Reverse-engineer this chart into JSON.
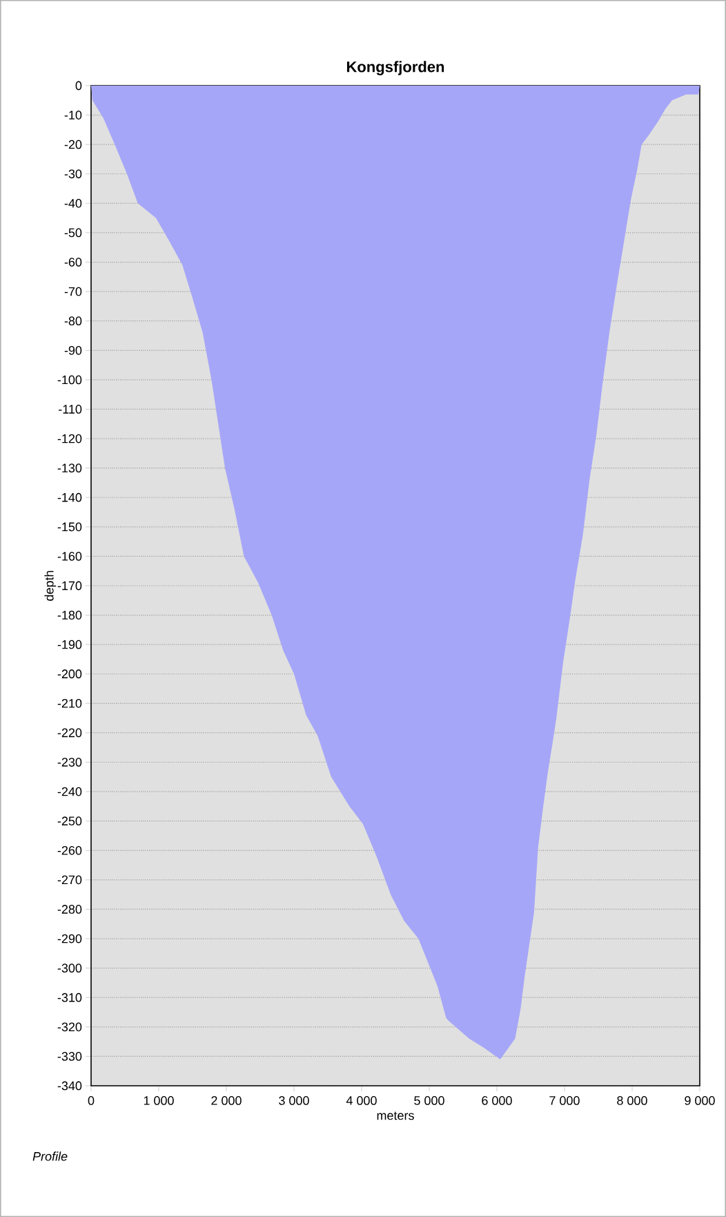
{
  "chart_data": {
    "type": "area",
    "title": "Kongsfjorden",
    "xlabel": "meters",
    "ylabel": "depth",
    "annotations": [
      "Profile"
    ],
    "x": [
      0,
      20,
      180,
      350,
      530,
      690,
      960,
      1160,
      1350,
      1510,
      1650,
      1780,
      1880,
      1980,
      2120,
      2260,
      2470,
      2670,
      2840,
      3000,
      3180,
      3350,
      3550,
      3820,
      4020,
      4220,
      4430,
      4630,
      4840,
      4980,
      5120,
      5250,
      5290,
      5590,
      5800,
      6050,
      6270,
      6350,
      6410,
      6550,
      6610,
      6680,
      6750,
      6820,
      6880,
      6980,
      7080,
      7160,
      7270,
      7370,
      7470,
      7570,
      7670,
      7780,
      7880,
      7980,
      8080,
      8140,
      8240,
      8390,
      8490,
      8590,
      8800,
      8980,
      9000
    ],
    "series": [
      {
        "color": "#a6a6f8",
        "values": [
          0,
          -5,
          -11,
          -20,
          -30,
          -40,
          -45,
          -53,
          -61,
          -73,
          -84,
          -100,
          -115,
          -130,
          -144,
          -160,
          -169,
          -180,
          -192,
          -200,
          -214,
          -221,
          -235,
          -245,
          -251,
          -262,
          -275,
          -284,
          -290,
          -298,
          -306,
          -317,
          -318,
          -324,
          -327,
          -331,
          -324,
          -314,
          -303,
          -281,
          -259,
          -246,
          -234,
          -224,
          -215,
          -196,
          -181,
          -168,
          -153,
          -134,
          -119,
          -100,
          -83,
          -67,
          -53,
          -39,
          -28,
          -20,
          -17,
          -12,
          -8,
          -5,
          -3,
          -3,
          0
        ]
      }
    ],
    "xlim": [
      0,
      9000
    ],
    "xticks": [
      0,
      {
        "value": 1000,
        "label": "1 000"
      },
      {
        "value": 2000,
        "label": "2 000"
      },
      {
        "value": 3000,
        "label": "3 000"
      },
      {
        "value": 4000,
        "label": "4 000"
      },
      {
        "value": 5000,
        "label": "5 000"
      },
      {
        "value": 6000,
        "label": "6 000"
      },
      {
        "value": 7000,
        "label": "7 000"
      },
      {
        "value": 8000,
        "label": "8 000"
      },
      {
        "value": 9000,
        "label": "9 000"
      }
    ],
    "ylim": [
      -340,
      0
    ],
    "yticks": [
      -340,
      -330,
      -320,
      -310,
      -300,
      -290,
      -280,
      -270,
      -260,
      -250,
      -240,
      -230,
      -220,
      -210,
      -200,
      -190,
      -180,
      -170,
      -160,
      -150,
      -140,
      -130,
      -120,
      -110,
      -100,
      -90,
      -80,
      -70,
      -60,
      -50,
      -40,
      -30,
      -20,
      -10,
      0
    ],
    "grid": "y"
  }
}
